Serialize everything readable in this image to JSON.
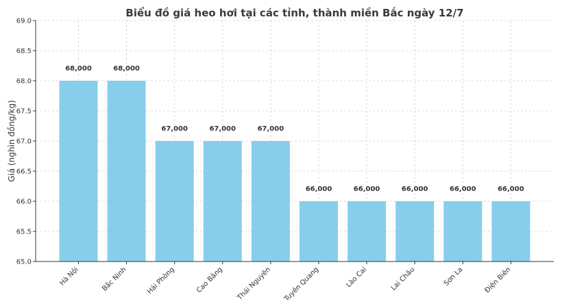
{
  "chart_data": {
    "type": "bar",
    "title": "Biểu đồ giá heo hơi tại các tỉnh, thành miền Bắc ngày 12/7",
    "ylabel": "Giá (nghìn đồng/kg)",
    "xlabel": "",
    "categories": [
      "Hà Nội",
      "Bắc Ninh",
      "Hải Phòng",
      "Cao Bằng",
      "Thái Nguyên",
      "Tuyên Quang",
      "Lào Cai",
      "Lai Châu",
      "Sơn La",
      "Điện Biên"
    ],
    "values": [
      68.0,
      68.0,
      67.0,
      67.0,
      67.0,
      66.0,
      66.0,
      66.0,
      66.0,
      66.0
    ],
    "data_labels": [
      "68,000",
      "68,000",
      "67,000",
      "67,000",
      "67,000",
      "66,000",
      "66,000",
      "66,000",
      "66,000",
      "66,000"
    ],
    "ylim": [
      65.0,
      69.0
    ],
    "yticks": [
      "65.0",
      "65.5",
      "66.0",
      "66.5",
      "67.0",
      "67.5",
      "68.0",
      "68.5",
      "69.0"
    ],
    "grid": true,
    "bar_color": "#87ceeb"
  }
}
